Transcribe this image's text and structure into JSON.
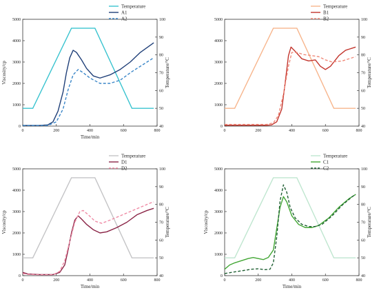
{
  "chart_data": [
    {
      "type": "line",
      "xlabel": "Time/min",
      "ylabel": "Viscosity/cp",
      "y2label": "Temperature/°C",
      "xlim": [
        0,
        800
      ],
      "ylim": [
        0,
        5000
      ],
      "y2lim": [
        40,
        100
      ],
      "xticks": [
        0,
        200,
        400,
        600,
        800
      ],
      "yticks": [
        0,
        1000,
        2000,
        3000,
        4000,
        5000
      ],
      "y2ticks": [
        40,
        50,
        60,
        70,
        80,
        90,
        100
      ],
      "legend_position": "top-right",
      "temperature": {
        "name": "Temperature",
        "color": "#39c3cf",
        "x": [
          0,
          60,
          290,
          430,
          650,
          780
        ],
        "y": [
          50,
          50,
          95,
          95,
          50,
          50
        ]
      },
      "series": [
        {
          "name": "A1",
          "color": "#1f3f78",
          "dash": "solid",
          "x": [
            0,
            100,
            150,
            180,
            210,
            240,
            260,
            280,
            300,
            320,
            350,
            380,
            420,
            460,
            520,
            580,
            640,
            700,
            780
          ],
          "y": [
            30,
            30,
            60,
            200,
            700,
            1600,
            2500,
            3200,
            3550,
            3450,
            3100,
            2700,
            2350,
            2250,
            2400,
            2650,
            3000,
            3450,
            3900
          ]
        },
        {
          "name": "A2",
          "color": "#3a86c8",
          "dash": "dashed",
          "x": [
            0,
            150,
            200,
            240,
            270,
            300,
            330,
            360,
            400,
            460,
            520,
            580,
            650,
            720,
            780
          ],
          "y": [
            30,
            30,
            200,
            800,
            1700,
            2400,
            2650,
            2500,
            2250,
            2000,
            2000,
            2150,
            2550,
            2900,
            3200
          ]
        }
      ]
    },
    {
      "type": "line",
      "xlabel": "",
      "ylabel": "",
      "y2label": "Temperature/°C",
      "xlim": [
        0,
        800
      ],
      "ylim": [
        0,
        5000
      ],
      "y2lim": [
        40,
        100
      ],
      "xticks": [
        0,
        200,
        400,
        600,
        800
      ],
      "yticks": [
        0,
        1000,
        2000,
        3000,
        4000,
        5000
      ],
      "y2ticks": [
        40,
        50,
        60,
        70,
        80,
        90,
        100
      ],
      "legend_position": "top-right",
      "temperature": {
        "name": "Temperature",
        "color": "#f7b58c",
        "x": [
          0,
          60,
          290,
          430,
          650,
          780
        ],
        "y": [
          50,
          50,
          95,
          95,
          50,
          50
        ]
      },
      "series": [
        {
          "name": "B1",
          "color": "#c2342c",
          "dash": "solid",
          "x": [
            0,
            250,
            280,
            310,
            340,
            360,
            380,
            395,
            420,
            460,
            500,
            540,
            570,
            600,
            630,
            680,
            720,
            780
          ],
          "y": [
            40,
            40,
            60,
            200,
            800,
            2000,
            3300,
            3700,
            3500,
            3150,
            3050,
            3100,
            2800,
            2650,
            2800,
            3300,
            3550,
            3700
          ]
        },
        {
          "name": "B2",
          "color": "#f08a7a",
          "dash": "dashed",
          "x": [
            0,
            250,
            290,
            320,
            350,
            380,
            400,
            430,
            470,
            520,
            560,
            600,
            640,
            700,
            780
          ],
          "y": [
            80,
            80,
            150,
            500,
            1500,
            2800,
            3450,
            3450,
            3350,
            3300,
            3250,
            3100,
            3000,
            3050,
            3250
          ]
        }
      ]
    },
    {
      "type": "line",
      "xlabel": "Time/min",
      "ylabel": "Viscosity/cp",
      "y2label": "Temperature/°C",
      "xlim": [
        0,
        800
      ],
      "ylim": [
        0,
        5000
      ],
      "y2lim": [
        40,
        100
      ],
      "xticks": [
        0,
        200,
        400,
        600,
        800
      ],
      "yticks": [
        0,
        1000,
        2000,
        3000,
        4000,
        5000
      ],
      "y2ticks": [
        40,
        50,
        60,
        70,
        80,
        90,
        100
      ],
      "legend_position": "top-right",
      "temperature": {
        "name": "Temperature",
        "color": "#c4c4c6",
        "x": [
          0,
          60,
          290,
          430,
          650,
          780
        ],
        "y": [
          50,
          50,
          95,
          95,
          50,
          50
        ]
      },
      "series": [
        {
          "name": "D1",
          "color": "#8a2446",
          "dash": "solid",
          "x": [
            0,
            30,
            100,
            180,
            220,
            250,
            270,
            290,
            310,
            330,
            350,
            380,
            420,
            460,
            500,
            560,
            620,
            680,
            740,
            780
          ],
          "y": [
            150,
            80,
            50,
            50,
            150,
            500,
            1200,
            2000,
            2600,
            2800,
            2650,
            2400,
            2150,
            2000,
            2050,
            2250,
            2500,
            2850,
            3050,
            3150
          ]
        },
        {
          "name": "D2",
          "color": "#ef8aa4",
          "dash": "dashed",
          "x": [
            0,
            30,
            100,
            180,
            220,
            250,
            280,
            310,
            340,
            360,
            390,
            430,
            470,
            520,
            580,
            640,
            700,
            760,
            780
          ],
          "y": [
            100,
            60,
            40,
            40,
            200,
            700,
            1600,
            2500,
            3000,
            3050,
            2850,
            2550,
            2450,
            2600,
            2800,
            3000,
            3200,
            3400,
            3450
          ]
        }
      ]
    },
    {
      "type": "line",
      "xlabel": "Time/min",
      "ylabel": "Viscosity/cp",
      "y2label": "Temperature/°C",
      "xlim": [
        0,
        800
      ],
      "ylim": [
        0,
        5000
      ],
      "y2lim": [
        40,
        100
      ],
      "xticks": [
        0,
        200,
        400,
        600,
        800
      ],
      "yticks": [
        0,
        1000,
        2000,
        3000,
        4000,
        5000
      ],
      "y2ticks": [
        40,
        50,
        60,
        70,
        80,
        90,
        100
      ],
      "legend_position": "top-right",
      "temperature": {
        "name": "Temperature",
        "color": "#bfe6cf",
        "x": [
          0,
          60,
          290,
          430,
          650,
          780
        ],
        "y": [
          50,
          50,
          95,
          95,
          50,
          50
        ]
      },
      "series": [
        {
          "name": "C1",
          "color": "#41a633",
          "dash": "solid",
          "x": [
            0,
            30,
            60,
            100,
            140,
            170,
            200,
            230,
            260,
            290,
            310,
            330,
            350,
            370,
            400,
            440,
            480,
            520,
            560,
            620,
            680,
            740,
            780
          ],
          "y": [
            300,
            500,
            600,
            700,
            800,
            850,
            800,
            750,
            850,
            1200,
            2200,
            3200,
            3700,
            3450,
            2800,
            2400,
            2250,
            2250,
            2350,
            2700,
            3200,
            3600,
            3800
          ]
        },
        {
          "name": "C2",
          "color": "#1f5f33",
          "dash": "dashed",
          "x": [
            0,
            40,
            80,
            120,
            160,
            200,
            240,
            270,
            290,
            310,
            330,
            350,
            370,
            390,
            420,
            460,
            500,
            540,
            580,
            640,
            700,
            760,
            780
          ],
          "y": [
            100,
            150,
            200,
            250,
            300,
            320,
            280,
            300,
            600,
            1800,
            3500,
            4250,
            3900,
            3200,
            2700,
            2400,
            2300,
            2300,
            2400,
            2800,
            3300,
            3700,
            3800
          ]
        }
      ]
    }
  ]
}
